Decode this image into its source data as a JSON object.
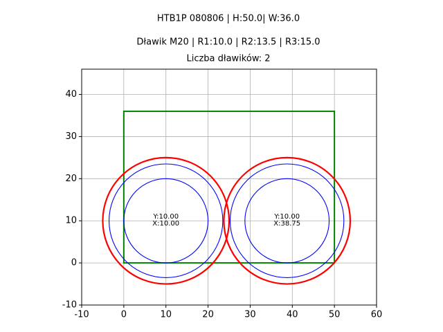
{
  "chart_data": {
    "type": "geometry",
    "title_lines": [
      "HTB1P 080806 | H:50.0| W:36.0",
      "Dławik M20 | R1:10.0 | R2:13.5 | R3:15.0",
      "Liczba dławików: 2"
    ],
    "rectangle": {
      "x": 0,
      "y": 0,
      "width": 50,
      "height": 36,
      "color": "#008000"
    },
    "ring_colors": [
      "#0000ff",
      "#0000ff",
      "#ff0000"
    ],
    "circles": [
      {
        "x": 10,
        "y": 10,
        "radii": [
          10,
          13.5,
          15
        ],
        "label_y": "Y:10.00",
        "label_x": "X:10.00"
      },
      {
        "x": 38.75,
        "y": 10,
        "radii": [
          10,
          13.5,
          15
        ],
        "label_y": "Y:10.00",
        "label_x": "X:38.75"
      }
    ],
    "xlim": [
      -10,
      60
    ],
    "ylim": [
      -10,
      46
    ],
    "xticks": [
      -10,
      0,
      10,
      20,
      30,
      40,
      50,
      60
    ],
    "yticks": [
      -10,
      0,
      10,
      20,
      30,
      40
    ],
    "grid": true
  }
}
